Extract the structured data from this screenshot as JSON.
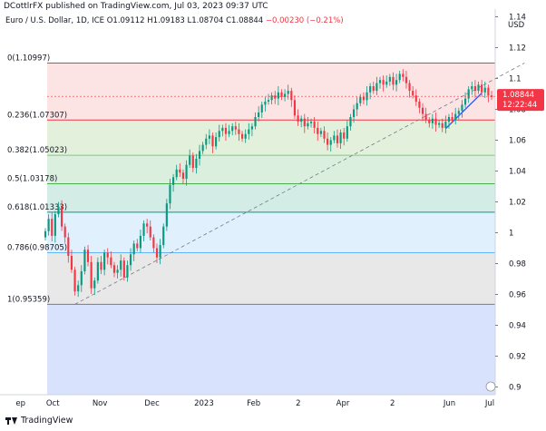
{
  "header": {
    "publisher": "DCottlrFX published on TradingView.com, Jul 03, 2023 09:37 UTC"
  },
  "symbol": {
    "name": "Euro / U.S. Dollar, 1D, ICE",
    "open": "O1.09112",
    "high": "H1.09183",
    "low": "L1.08704",
    "close": "C1.08844",
    "change": "−0.00230 (−0.21%)"
  },
  "price_axis": {
    "currency": "USD",
    "current_price": "1.08844",
    "countdown": "12:22:44",
    "tag_color": "#f23645"
  },
  "footer": {
    "brand": "TradingView"
  },
  "colors": {
    "up": "#089981",
    "down": "#f23645"
  },
  "chart_data": {
    "type": "candlestick",
    "y_range": [
      0.895,
      1.145
    ],
    "y_ticks": [
      0.9,
      0.92,
      0.94,
      0.96,
      0.98,
      1.0,
      1.02,
      1.04,
      1.06,
      1.08,
      1.1,
      1.12,
      1.14
    ],
    "x_labels": [
      "ep",
      "Oct",
      "Nov",
      "Dec",
      "2023",
      "Feb",
      "2",
      "Apr",
      "2",
      "Jun",
      "Jul"
    ],
    "fibonacci": {
      "levels": [
        {
          "label": "0(1.10997)",
          "price": 1.10997,
          "fill": "#fde4e4",
          "line": "#f23645"
        },
        {
          "label": "0.236(1.07307)",
          "price": 1.07307,
          "fill": "#e3f1dc",
          "line": "#f23645"
        },
        {
          "label": "0.382(1.05023)",
          "price": 1.05023,
          "fill": "#dbefdf",
          "line": "#81c784"
        },
        {
          "label": "0.5(1.03178)",
          "price": 1.03178,
          "fill": "#d3ece5",
          "line": "#4caf50"
        },
        {
          "label": "0.618(1.01333)",
          "price": 1.01333,
          "fill": "#e1f0fd",
          "line": "#089981"
        },
        {
          "label": "0.786(0.98705)",
          "price": 0.98705,
          "fill": "#e8e8e8",
          "line": "#64b5f6"
        },
        {
          "label": "1(0.95359)",
          "price": 0.95359,
          "fill": "#d8e2fc",
          "line": "#787b86"
        }
      ]
    },
    "candles_close_path": [
      1.001,
      1.009,
      0.998,
      1.012,
      1.017,
      1.004,
      0.997,
      0.985,
      0.976,
      0.962,
      0.966,
      0.975,
      0.989,
      0.981,
      0.964,
      0.969,
      0.981,
      0.976,
      0.987,
      0.984,
      0.979,
      0.974,
      0.976,
      0.982,
      0.971,
      0.979,
      0.986,
      0.993,
      0.99,
      0.998,
      1.006,
      1.004,
      0.997,
      0.99,
      0.984,
      0.992,
      1.004,
      1.019,
      1.031,
      1.036,
      1.041,
      1.039,
      1.035,
      1.044,
      1.05,
      1.042,
      1.048,
      1.053,
      1.057,
      1.061,
      1.063,
      1.056,
      1.062,
      1.066,
      1.068,
      1.064,
      1.066,
      1.069,
      1.067,
      1.064,
      1.061,
      1.064,
      1.067,
      1.069,
      1.075,
      1.078,
      1.083,
      1.085,
      1.086,
      1.089,
      1.087,
      1.091,
      1.088,
      1.09,
      1.092,
      1.086,
      1.076,
      1.072,
      1.074,
      1.069,
      1.071,
      1.072,
      1.068,
      1.064,
      1.066,
      1.061,
      1.057,
      1.06,
      1.063,
      1.058,
      1.065,
      1.061,
      1.069,
      1.075,
      1.08,
      1.084,
      1.088,
      1.086,
      1.091,
      1.095,
      1.092,
      1.097,
      1.099,
      1.096,
      1.098,
      1.101,
      1.096,
      1.099,
      1.103,
      1.101,
      1.097,
      1.092,
      1.089,
      1.085,
      1.081,
      1.077,
      1.073,
      1.071,
      1.074,
      1.07,
      1.071,
      1.068,
      1.072,
      1.075,
      1.073,
      1.077,
      1.079,
      1.083,
      1.087,
      1.093,
      1.095,
      1.092,
      1.096,
      1.091,
      1.094,
      1.089,
      1.088
    ],
    "trendlines": [
      {
        "kind": "dashed",
        "from": {
          "bar": 9,
          "price": 0.9536
        },
        "to": {
          "bar": 146,
          "price": 1.11
        },
        "color": "#787b86"
      },
      {
        "kind": "solid",
        "from": {
          "bar": 122,
          "price": 1.0675
        },
        "to": {
          "bar": 133,
          "price": 1.0905
        },
        "color": "#2962ff"
      }
    ]
  }
}
